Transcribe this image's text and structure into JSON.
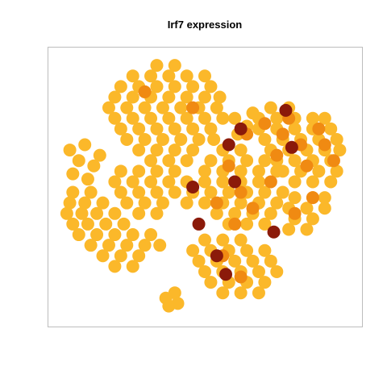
{
  "chart_data": {
    "type": "scatter",
    "title": "Irf7 expression",
    "xlim": [
      0,
      100
    ],
    "ylim": [
      0,
      100
    ],
    "grid": false,
    "point_size": 8,
    "series": [
      {
        "color": "#fbb82a",
        "x": [
          34,
          40,
          26,
          32,
          38,
          44,
          50,
          22,
          28,
          34,
          40,
          46,
          52,
          20,
          26,
          32,
          38,
          44,
          50,
          55,
          18,
          24,
          30,
          36,
          42,
          48,
          54,
          20,
          26,
          32,
          38,
          44,
          50,
          56,
          22,
          28,
          34,
          40,
          46,
          52,
          24,
          30,
          36,
          42,
          48,
          53,
          28,
          34,
          40,
          46,
          32,
          38,
          44,
          5,
          10,
          8,
          13,
          6,
          11,
          15,
          22,
          28,
          34,
          40,
          20,
          26,
          32,
          38,
          44,
          22,
          28,
          34,
          40,
          46,
          24,
          30,
          36,
          44,
          28,
          34,
          6,
          12,
          5,
          10,
          16,
          4,
          9,
          14,
          20,
          6,
          11,
          17,
          23,
          8,
          14,
          20,
          26,
          32,
          12,
          18,
          24,
          30,
          35,
          16,
          22,
          28,
          20,
          26,
          72,
          78,
          68,
          74,
          80,
          86,
          90,
          68,
          74,
          80,
          86,
          92,
          70,
          76,
          82,
          88,
          94,
          72,
          78,
          84,
          90,
          95,
          74,
          80,
          86,
          92,
          76,
          82,
          88,
          94,
          80,
          86,
          92,
          60,
          64,
          61,
          66,
          56,
          62,
          52,
          58,
          64,
          70,
          50,
          56,
          62,
          68,
          74,
          50,
          56,
          62,
          68,
          52,
          58,
          64,
          70,
          76,
          50,
          56,
          62,
          68,
          74,
          54,
          60,
          66,
          72,
          58,
          64,
          70,
          80,
          86,
          90,
          78,
          84,
          90,
          80,
          86,
          78,
          84,
          50,
          56,
          62,
          46,
          52,
          58,
          64,
          70,
          48,
          54,
          60,
          66,
          72,
          50,
          56,
          62,
          68,
          74,
          52,
          58,
          64,
          70,
          56,
          62,
          68,
          37,
          40,
          38,
          41
        ],
        "values": [
          96,
          96,
          92,
          92,
          92,
          92,
          92,
          88,
          88,
          88,
          88,
          88,
          88,
          84,
          84,
          84,
          84,
          84,
          84,
          84,
          80,
          80,
          80,
          80,
          80,
          80,
          80,
          76,
          76,
          76,
          76,
          76,
          76,
          76,
          72,
          72,
          72,
          72,
          72,
          72,
          68,
          68,
          68,
          68,
          68,
          68,
          64,
          64,
          64,
          64,
          60,
          60,
          60,
          64,
          66,
          60,
          58,
          55,
          53,
          62,
          56,
          56,
          56,
          56,
          52,
          52,
          52,
          52,
          52,
          48,
          48,
          48,
          48,
          48,
          44,
          44,
          44,
          44,
          40,
          40,
          48,
          48,
          44,
          44,
          44,
          40,
          40,
          40,
          40,
          36,
          36,
          36,
          36,
          32,
          32,
          32,
          32,
          32,
          28,
          28,
          28,
          28,
          28,
          24,
          24,
          24,
          20,
          20,
          80,
          80,
          76,
          76,
          76,
          76,
          76,
          72,
          72,
          72,
          72,
          72,
          68,
          68,
          68,
          68,
          68,
          64,
          64,
          64,
          64,
          64,
          60,
          60,
          60,
          60,
          56,
          56,
          56,
          56,
          52,
          52,
          52,
          76,
          73,
          70,
          78,
          64,
          64,
          60,
          60,
          60,
          60,
          56,
          56,
          56,
          56,
          56,
          52,
          52,
          52,
          52,
          48,
          48,
          48,
          48,
          48,
          44,
          44,
          44,
          44,
          44,
          40,
          40,
          40,
          40,
          36,
          36,
          36,
          46,
          46,
          46,
          42,
          42,
          42,
          38,
          38,
          34,
          34,
          30,
          30,
          30,
          26,
          26,
          26,
          26,
          26,
          22,
          22,
          22,
          22,
          22,
          18,
          18,
          18,
          18,
          18,
          14,
          14,
          14,
          14,
          10,
          10,
          10,
          8,
          10,
          5,
          6
        ]
      },
      {
        "color": "#f08a12",
        "x": [
          70,
          76,
          82,
          88,
          74,
          84,
          90,
          93,
          78,
          58,
          62,
          66,
          72,
          54,
          60,
          64,
          56,
          62,
          30,
          46,
          86,
          80
        ],
        "values": [
          74,
          70,
          66,
          72,
          62,
          58,
          66,
          60,
          76,
          58,
          48,
          42,
          52,
          44,
          36,
          70,
          24,
          16,
          86,
          80,
          46,
          40
        ]
      },
      {
        "color": "#8b1a0a",
        "x": [
          77,
          79,
          58,
          60,
          73,
          54,
          57,
          48,
          46,
          62
        ],
        "values": [
          79,
          65,
          66,
          52,
          33,
          24,
          17,
          36,
          50,
          72
        ]
      }
    ]
  }
}
